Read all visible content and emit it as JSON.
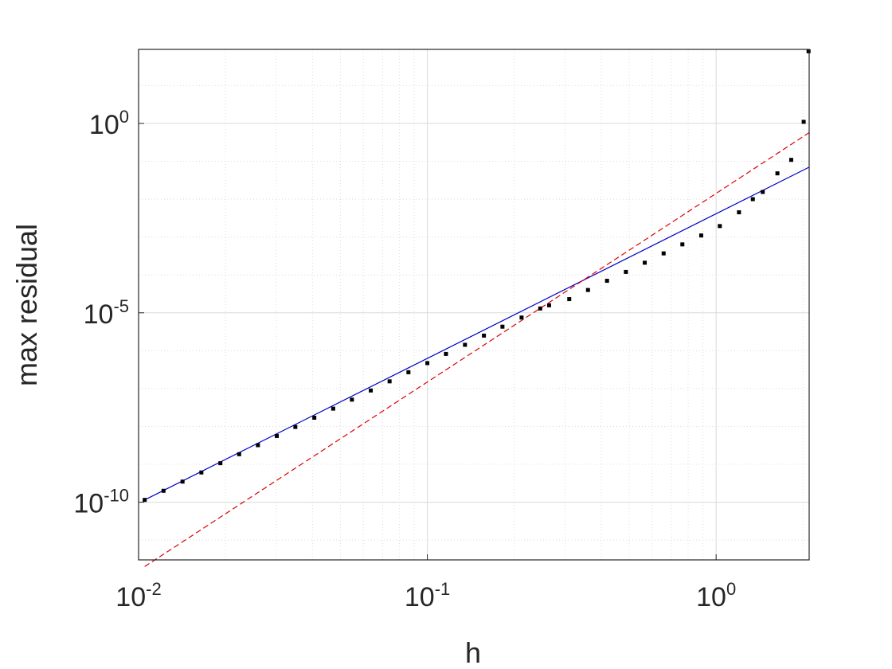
{
  "chart_data": {
    "type": "scatter",
    "title": "",
    "xlabel": "h",
    "ylabel": "max residual",
    "xscale": "log",
    "yscale": "log",
    "xlim": [
      0.01,
      2.1
    ],
    "ylim": [
      3e-12,
      90.0
    ],
    "grid": true,
    "minor_grid": true,
    "x_ticks": [
      {
        "value": 0.01,
        "base": "10",
        "exp": "-2"
      },
      {
        "value": 0.1,
        "base": "10",
        "exp": "-1"
      },
      {
        "value": 1,
        "base": "10",
        "exp": "0"
      }
    ],
    "y_ticks": [
      {
        "value": 1e-10,
        "base": "10",
        "exp": "-10"
      },
      {
        "value": 1e-05,
        "base": "10",
        "exp": "-5"
      },
      {
        "value": 1,
        "base": "10",
        "exp": "0"
      }
    ],
    "series": [
      {
        "kind": "markers",
        "color": "#000000",
        "points": [
          [
            0.0105,
            1.15e-10
          ],
          [
            0.0122,
            2e-10
          ],
          [
            0.0142,
            3.5e-10
          ],
          [
            0.0165,
            6.1e-10
          ],
          [
            0.0192,
            1.07e-09
          ],
          [
            0.0223,
            1.85e-09
          ],
          [
            0.0259,
            3.2e-09
          ],
          [
            0.0301,
            5.6e-09
          ],
          [
            0.0349,
            9.7e-09
          ],
          [
            0.0406,
            1.7e-08
          ],
          [
            0.0472,
            2.95e-08
          ],
          [
            0.0548,
            5.1e-08
          ],
          [
            0.0637,
            8.9e-08
          ],
          [
            0.074,
            1.55e-07
          ],
          [
            0.086,
            2.7e-07
          ],
          [
            0.1,
            4.7e-07
          ],
          [
            0.116,
            8.2e-07
          ],
          [
            0.135,
            1.43e-06
          ],
          [
            0.157,
            2.5e-06
          ],
          [
            0.182,
            4.3e-06
          ],
          [
            0.212,
            7.5e-06
          ],
          [
            0.264,
            1.58e-05
          ],
          [
            0.246,
            1.3e-05
          ],
          [
            0.31,
            2.3e-05
          ],
          [
            0.36,
            4e-05
          ],
          [
            0.419,
            7e-05
          ],
          [
            0.487,
            0.00012
          ],
          [
            0.566,
            0.00021
          ],
          [
            0.658,
            0.00037
          ],
          [
            0.764,
            0.00064
          ],
          [
            0.888,
            0.0011
          ],
          [
            1.03,
            0.00195
          ],
          [
            1.2,
            0.0045
          ],
          [
            1.34,
            0.01
          ],
          [
            1.45,
            0.0155
          ],
          [
            1.63,
            0.048
          ],
          [
            1.82,
            0.109
          ],
          [
            2.01,
            1.1
          ],
          [
            2.09,
            80.0
          ]
        ]
      },
      {
        "kind": "line",
        "style": "solid",
        "color": "#0000cc",
        "points": [
          [
            0.0105,
            1.15e-10
          ],
          [
            2.1,
            0.07
          ]
        ]
      },
      {
        "kind": "line",
        "style": "dashed",
        "color": "#dd0000",
        "points": [
          [
            0.0105,
            2e-12
          ],
          [
            2.1,
            0.57
          ]
        ]
      }
    ]
  }
}
